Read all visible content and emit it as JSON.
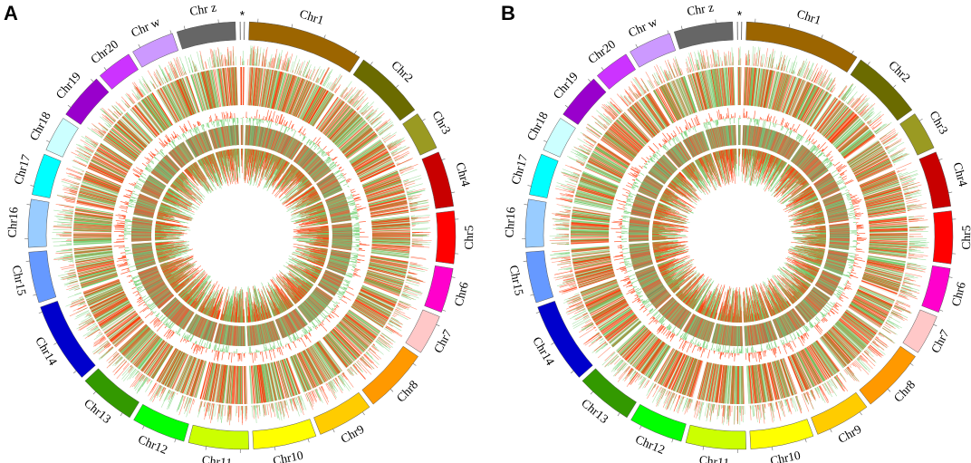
{
  "panels": [
    {
      "id": "A",
      "label": "A",
      "seed": 11
    },
    {
      "id": "B",
      "label": "B",
      "seed": 29
    }
  ],
  "highlight_marker": "*",
  "chromosomes": [
    {
      "name": "Chr1",
      "size": 1.5,
      "color": "#9c6500"
    },
    {
      "name": "Chr2",
      "size": 0.92,
      "color": "#6b6b00"
    },
    {
      "name": "Chr3",
      "size": 0.5,
      "color": "#9a9a22"
    },
    {
      "name": "Chr4",
      "size": 0.72,
      "color": "#c80000"
    },
    {
      "name": "Chr5",
      "size": 0.68,
      "color": "#ff0000"
    },
    {
      "name": "Chr6",
      "size": 0.58,
      "color": "#ff00cc"
    },
    {
      "name": "Chr7",
      "size": 0.52,
      "color": "#ffc8c8"
    },
    {
      "name": "Chr8",
      "size": 0.84,
      "color": "#ff9900"
    },
    {
      "name": "Chr9",
      "size": 0.72,
      "color": "#ffcc00"
    },
    {
      "name": "Chr10",
      "size": 0.82,
      "color": "#ffff00"
    },
    {
      "name": "Chr11",
      "size": 0.78,
      "color": "#ccff00"
    },
    {
      "name": "Chr12",
      "size": 0.7,
      "color": "#00ff00"
    },
    {
      "name": "Chr13",
      "size": 0.74,
      "color": "#339900"
    },
    {
      "name": "Chr14",
      "size": 1.05,
      "color": "#0000cc"
    },
    {
      "name": "Chr15",
      "size": 0.66,
      "color": "#6699ff"
    },
    {
      "name": "Chr16",
      "size": 0.62,
      "color": "#99ccff"
    },
    {
      "name": "Chr17",
      "size": 0.54,
      "color": "#00ffff"
    },
    {
      "name": "Chr18",
      "size": 0.46,
      "color": "#ccffff"
    },
    {
      "name": "Chr19",
      "size": 0.6,
      "color": "#9900cc"
    },
    {
      "name": "Chr20",
      "size": 0.46,
      "color": "#cc33ff"
    },
    {
      "name": "Chr w",
      "size": 0.56,
      "color": "#cc99ff"
    },
    {
      "name": "Chr z",
      "size": 0.76,
      "color": "#666666"
    },
    {
      "name": "",
      "size": 0.06,
      "color": "#ffffff"
    }
  ],
  "track_colors": {
    "gain": "#ff3300",
    "loss": "#66cc66",
    "band_fill": "#8c8a58"
  }
}
